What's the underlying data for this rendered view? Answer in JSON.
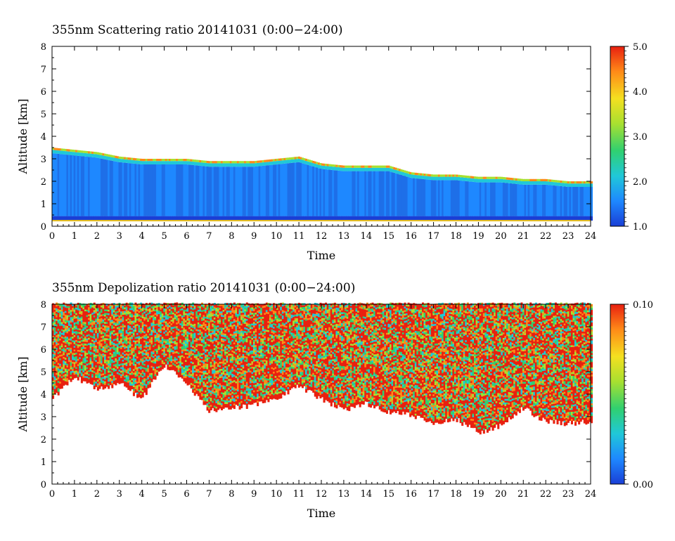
{
  "chart_data": [
    {
      "type": "heatmap",
      "title": "355nm Scattering ratio  20141031 (0:00−24:00)",
      "xlabel": "Time",
      "ylabel": "Altitude [km]",
      "xlim": [
        0,
        24
      ],
      "ylim": [
        0,
        8
      ],
      "x_ticks": [
        "0",
        "1",
        "2",
        "3",
        "4",
        "5",
        "6",
        "7",
        "8",
        "9",
        "10",
        "11",
        "12",
        "13",
        "14",
        "15",
        "16",
        "17",
        "18",
        "19",
        "20",
        "21",
        "22",
        "23",
        "24"
      ],
      "y_ticks": [
        "0",
        "1",
        "2",
        "3",
        "4",
        "5",
        "6",
        "7",
        "8"
      ],
      "colorbar": {
        "range": [
          1.0,
          5.0
        ],
        "tick_labels": [
          "1.0",
          "2.0",
          "3.0",
          "4.0",
          "5.0"
        ],
        "tick_values": [
          1.0,
          2.0,
          3.0,
          4.0,
          5.0
        ],
        "colormap": [
          "#1a3fd6",
          "#1e88ff",
          "#20c8d8",
          "#30d070",
          "#a8e030",
          "#f4e020",
          "#ff8a18",
          "#e82010"
        ]
      },
      "boundary_layer_top_km": [
        [
          0,
          3.5
        ],
        [
          1,
          3.4
        ],
        [
          2,
          3.3
        ],
        [
          3,
          3.1
        ],
        [
          4,
          3.0
        ],
        [
          5,
          3.0
        ],
        [
          6,
          3.0
        ],
        [
          7,
          2.9
        ],
        [
          8,
          2.9
        ],
        [
          9,
          2.9
        ],
        [
          10,
          3.0
        ],
        [
          11,
          3.1
        ],
        [
          12,
          2.8
        ],
        [
          13,
          2.7
        ],
        [
          14,
          2.7
        ],
        [
          15,
          2.7
        ],
        [
          16,
          2.4
        ],
        [
          17,
          2.3
        ],
        [
          18,
          2.3
        ],
        [
          19,
          2.2
        ],
        [
          20,
          2.2
        ],
        [
          21,
          2.1
        ],
        [
          22,
          2.1
        ],
        [
          23,
          2.0
        ],
        [
          24,
          2.0
        ]
      ]
    },
    {
      "type": "heatmap",
      "title": "355nm Depolization ratio  20141031 (0:00−24:00)",
      "xlabel": "Time",
      "ylabel": "Altitude [km]",
      "xlim": [
        0,
        24
      ],
      "ylim": [
        0,
        8
      ],
      "x_ticks": [
        "0",
        "1",
        "2",
        "3",
        "4",
        "5",
        "6",
        "7",
        "8",
        "9",
        "10",
        "11",
        "12",
        "13",
        "14",
        "15",
        "16",
        "17",
        "18",
        "19",
        "20",
        "21",
        "22",
        "23",
        "24"
      ],
      "y_ticks": [
        "0",
        "1",
        "2",
        "3",
        "4",
        "5",
        "6",
        "7",
        "8"
      ],
      "colorbar": {
        "range": [
          0.0,
          0.1
        ],
        "tick_labels": [
          "0.00",
          "0.10"
        ],
        "tick_values": [
          0.0,
          0.1
        ],
        "colormap": [
          "#1a3fd6",
          "#1e88ff",
          "#20c8d8",
          "#30d070",
          "#a8e030",
          "#f4e020",
          "#ff8a18",
          "#e82010"
        ]
      },
      "signal_bottom_km": [
        [
          0,
          3.8
        ],
        [
          1,
          4.8
        ],
        [
          2,
          4.2
        ],
        [
          3,
          4.5
        ],
        [
          4,
          3.8
        ],
        [
          5,
          5.3
        ],
        [
          6,
          4.5
        ],
        [
          7,
          3.3
        ],
        [
          8,
          3.4
        ],
        [
          9,
          3.5
        ],
        [
          10,
          3.8
        ],
        [
          11,
          4.4
        ],
        [
          12,
          3.8
        ],
        [
          13,
          3.3
        ],
        [
          14,
          3.6
        ],
        [
          15,
          3.2
        ],
        [
          16,
          3.1
        ],
        [
          17,
          2.7
        ],
        [
          18,
          2.9
        ],
        [
          19,
          2.3
        ],
        [
          20,
          2.6
        ],
        [
          21,
          3.4
        ],
        [
          22,
          2.8
        ],
        [
          23,
          2.7
        ],
        [
          24,
          2.8
        ]
      ]
    }
  ]
}
